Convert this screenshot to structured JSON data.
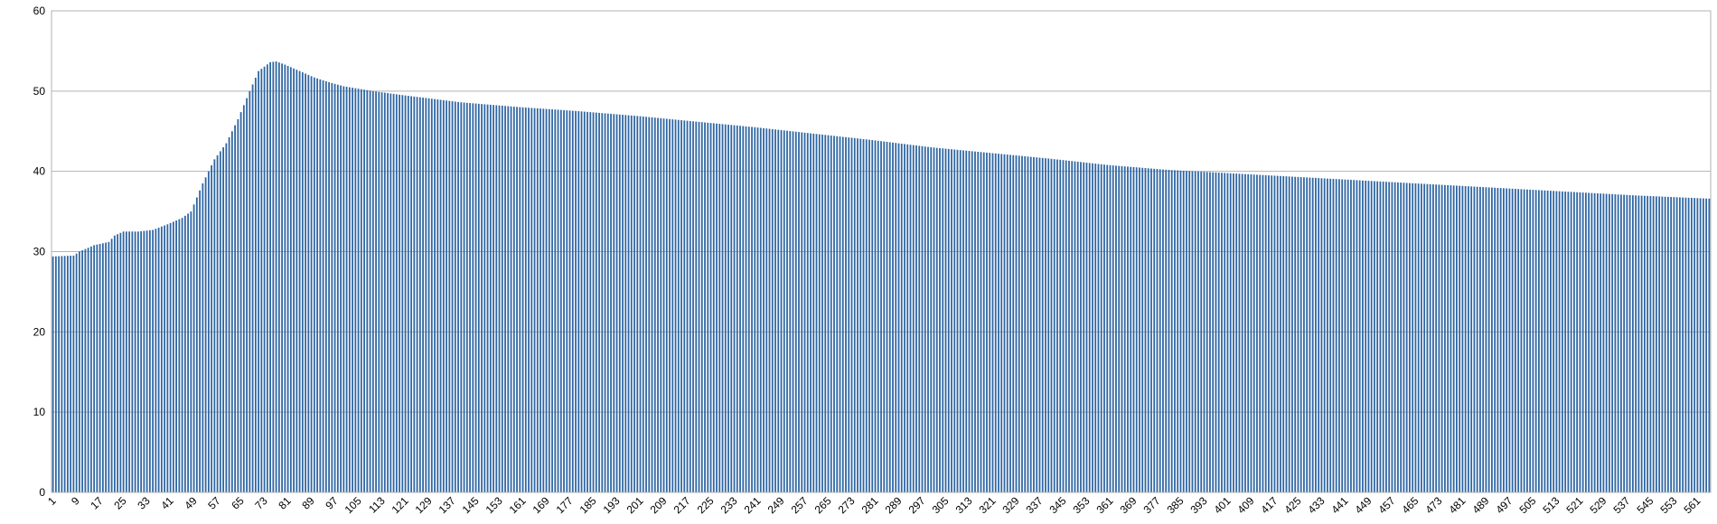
{
  "chart_data": {
    "type": "bar",
    "title": "",
    "xlabel": "",
    "ylabel": "",
    "x_start": 1,
    "x_end": 565,
    "x_tick_labels": [
      "1",
      "9",
      "17",
      "25",
      "33",
      "41",
      "49",
      "57",
      "65",
      "73",
      "81",
      "89",
      "97",
      "105",
      "113",
      "121",
      "129",
      "137",
      "145",
      "153",
      "161",
      "169",
      "177",
      "185",
      "193",
      "201",
      "209",
      "217",
      "225",
      "233",
      "241",
      "249",
      "257",
      "265",
      "273",
      "281",
      "289",
      "297",
      "305",
      "313",
      "321",
      "329",
      "337",
      "345",
      "353",
      "361",
      "369",
      "377",
      "385",
      "393",
      "401",
      "409",
      "417",
      "425",
      "433",
      "441",
      "449",
      "457",
      "465",
      "473",
      "481",
      "489",
      "497",
      "505",
      "513",
      "521",
      "529",
      "537",
      "545",
      "553",
      "561"
    ],
    "y_tick_labels": [
      "0",
      "10",
      "20",
      "30",
      "40",
      "50",
      "60"
    ],
    "ylim": [
      0,
      60
    ],
    "grid": true,
    "legend": "none",
    "bar_color": "#2f66a3",
    "value_profile": [
      [
        1,
        29.4
      ],
      [
        8,
        29.5
      ],
      [
        10,
        30.0
      ],
      [
        15,
        30.8
      ],
      [
        20,
        31.2
      ],
      [
        22,
        32.0
      ],
      [
        25,
        32.5
      ],
      [
        30,
        32.5
      ],
      [
        35,
        32.7
      ],
      [
        40,
        33.4
      ],
      [
        45,
        34.2
      ],
      [
        48,
        35.0
      ],
      [
        52,
        38.5
      ],
      [
        56,
        41.5
      ],
      [
        60,
        43.5
      ],
      [
        64,
        46.5
      ],
      [
        68,
        50.0
      ],
      [
        71,
        52.5
      ],
      [
        75,
        53.6
      ],
      [
        77,
        53.7
      ],
      [
        80,
        53.3
      ],
      [
        85,
        52.5
      ],
      [
        90,
        51.7
      ],
      [
        95,
        51.1
      ],
      [
        100,
        50.6
      ],
      [
        110,
        50.0
      ],
      [
        120,
        49.5
      ],
      [
        140,
        48.6
      ],
      [
        160,
        48.0
      ],
      [
        180,
        47.5
      ],
      [
        200,
        46.9
      ],
      [
        220,
        46.2
      ],
      [
        240,
        45.5
      ],
      [
        260,
        44.7
      ],
      [
        280,
        43.9
      ],
      [
        300,
        43.0
      ],
      [
        320,
        42.3
      ],
      [
        340,
        41.6
      ],
      [
        360,
        40.8
      ],
      [
        380,
        40.2
      ],
      [
        400,
        39.8
      ],
      [
        420,
        39.4
      ],
      [
        440,
        39.0
      ],
      [
        460,
        38.6
      ],
      [
        480,
        38.2
      ],
      [
        500,
        37.8
      ],
      [
        520,
        37.4
      ],
      [
        540,
        37.0
      ],
      [
        565,
        36.6
      ]
    ]
  }
}
